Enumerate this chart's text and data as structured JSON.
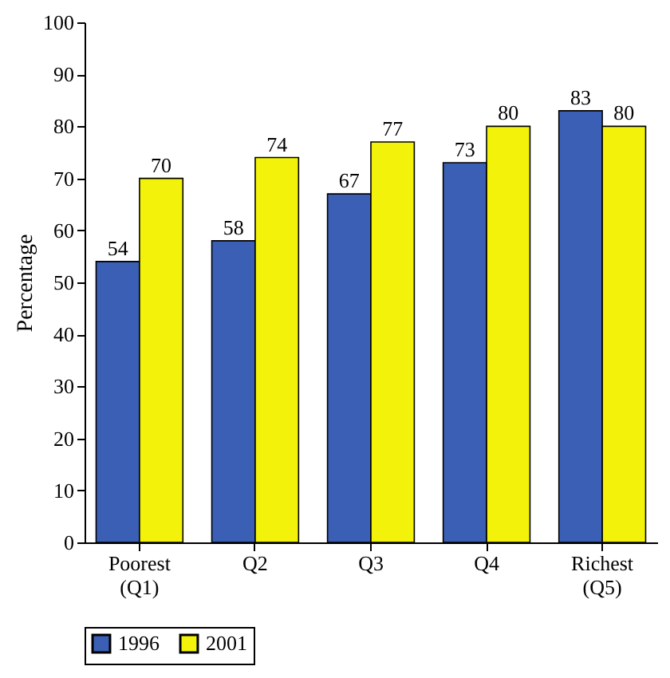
{
  "chart_data": {
    "type": "bar",
    "ylabel": "Percentage",
    "categories": [
      "Poorest (Q1)",
      "Q2",
      "Q3",
      "Q4",
      "Richest (Q5)"
    ],
    "series": [
      {
        "name": "1996",
        "color": "#3a5fb5",
        "values": [
          54,
          58,
          67,
          73,
          83
        ]
      },
      {
        "name": "2001",
        "color": "#f2f20a",
        "values": [
          70,
          74,
          77,
          80,
          80
        ]
      }
    ],
    "ylim": [
      0,
      100
    ],
    "yticks": [
      0,
      10,
      20,
      30,
      40,
      50,
      60,
      70,
      80,
      90,
      100
    ],
    "grid": false,
    "legend": "bottom",
    "data_labels": true
  }
}
